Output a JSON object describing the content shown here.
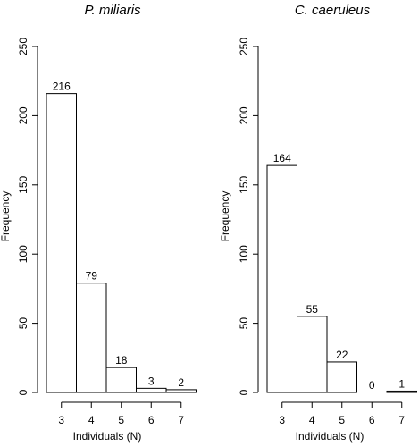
{
  "chart_data": [
    {
      "type": "bar",
      "title": "P. miliaris",
      "xlabel": "Individuals (N)",
      "ylabel": "Frequency",
      "categories": [
        "3",
        "4",
        "5",
        "6",
        "7"
      ],
      "values": [
        216,
        79,
        18,
        3,
        2
      ],
      "value_labels": [
        "216",
        "79",
        "18",
        "3",
        "2"
      ],
      "ylim": [
        0,
        250
      ],
      "yticks": [
        0,
        50,
        100,
        150,
        200,
        250
      ],
      "ytick_labels": [
        "0",
        "50",
        "100",
        "150",
        "200",
        "250"
      ],
      "grid": false
    },
    {
      "type": "bar",
      "title": "C. caeruleus",
      "xlabel": "Individuals (N)",
      "ylabel": "Frequency",
      "categories": [
        "3",
        "4",
        "5",
        "6",
        "7"
      ],
      "values": [
        164,
        55,
        22,
        0,
        1
      ],
      "value_labels": [
        "164",
        "55",
        "22",
        "0",
        "1"
      ],
      "ylim": [
        0,
        250
      ],
      "yticks": [
        0,
        50,
        100,
        150,
        200,
        250
      ],
      "ytick_labels": [
        "0",
        "50",
        "100",
        "150",
        "200",
        "250"
      ],
      "grid": false
    }
  ]
}
